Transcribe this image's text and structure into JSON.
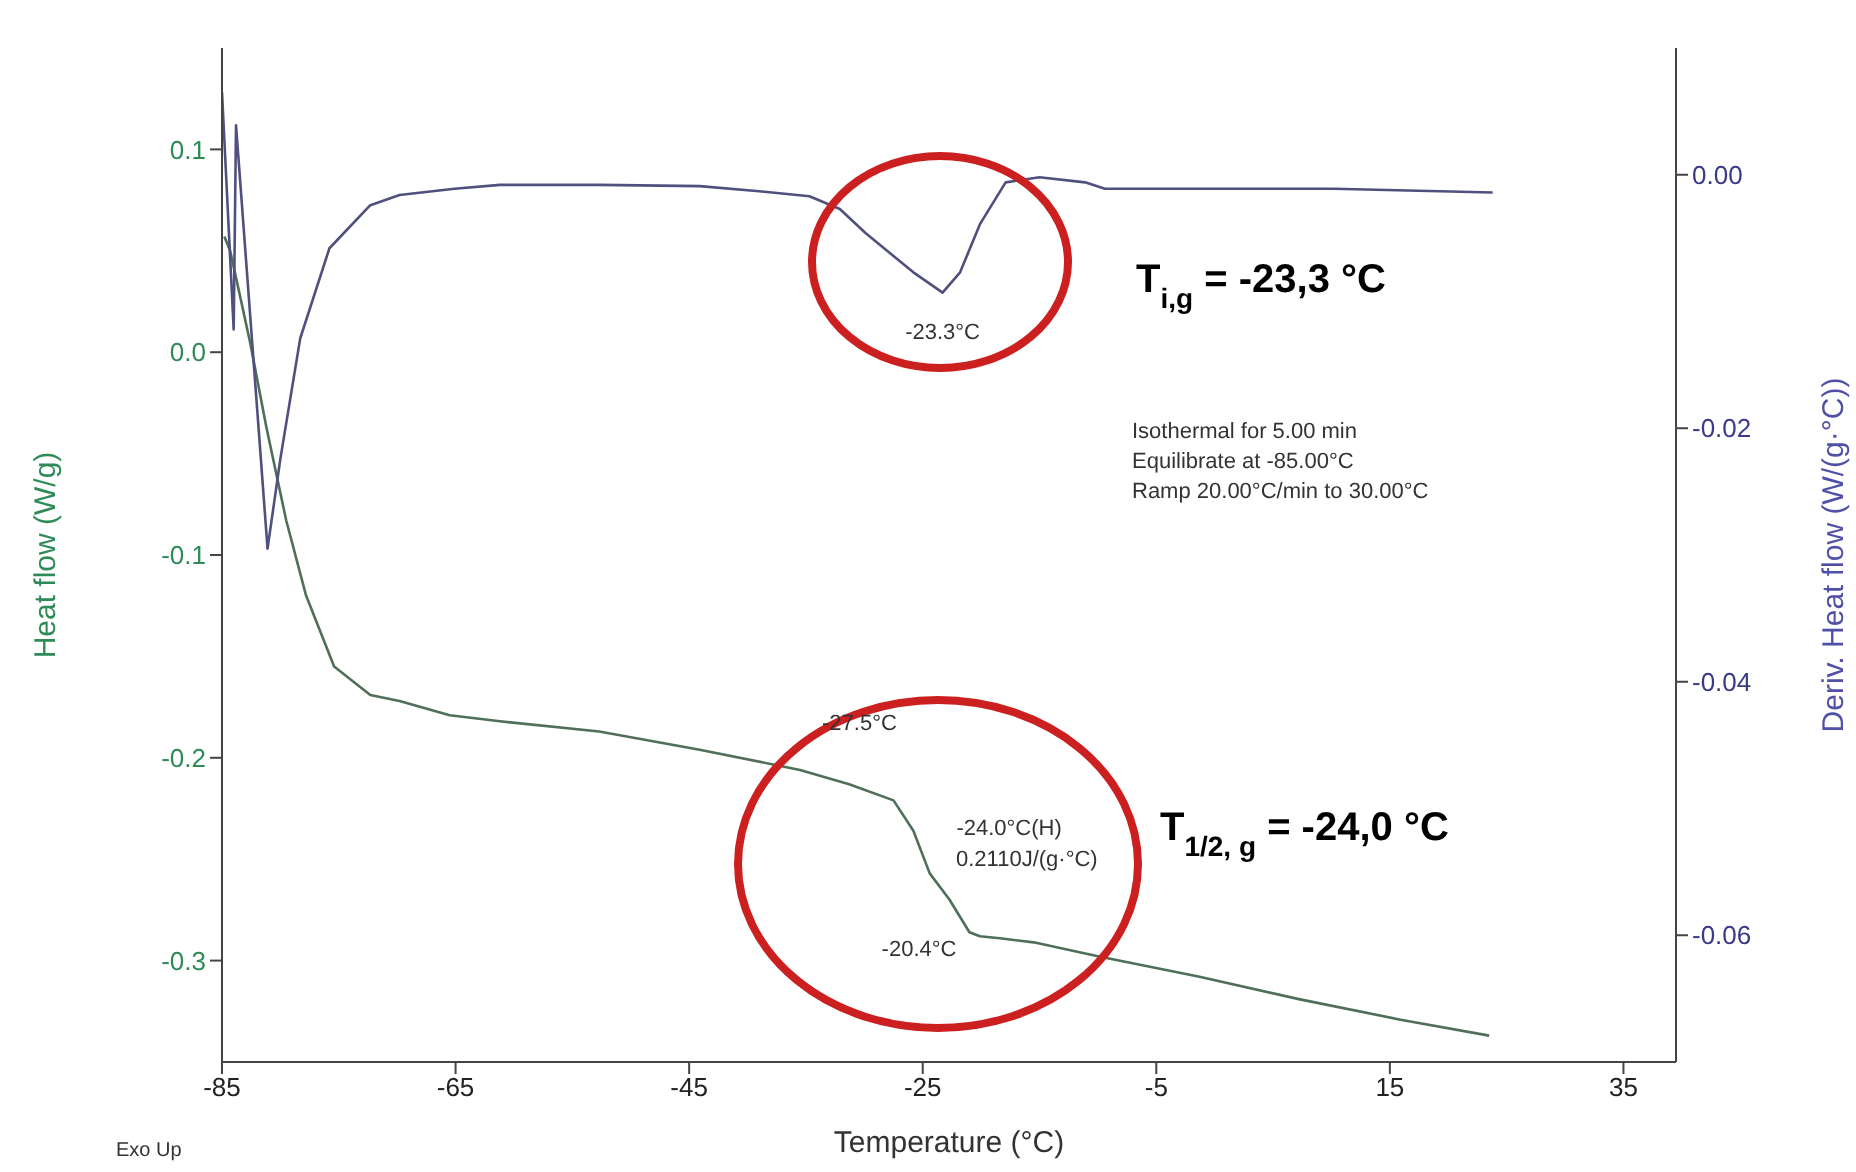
{
  "chart_data": {
    "type": "line",
    "xlabel": "Temperature (°C)",
    "ylabel": "Heat flow (W/g)",
    "y2label": "Deriv. Heat flow (W/(g·°C))",
    "xlim": [
      -85,
      39.5
    ],
    "xticks": [
      -85,
      -65,
      -45,
      -25,
      -5,
      15,
      35
    ],
    "ylim": [
      -0.35,
      0.15
    ],
    "yticks": [
      {
        "value": -0.3,
        "label": "-0.3"
      },
      {
        "value": -0.2,
        "label": "-0.2"
      },
      {
        "value": -0.1,
        "label": "-0.1"
      },
      {
        "value": 0,
        "label": "0.0"
      },
      {
        "value": 0.1,
        "label": "0.1"
      }
    ],
    "y2lim": [
      -0.07,
      0.01
    ],
    "y2ticks": [
      {
        "value": -0.06,
        "label": "-0.06"
      },
      {
        "value": -0.04,
        "label": "-0.04"
      },
      {
        "value": -0.02,
        "label": "-0.02"
      },
      {
        "value": 0,
        "label": "0.00"
      }
    ],
    "grid": false,
    "marker": "none",
    "line_style": "solid",
    "series": [
      {
        "color": "#4f6f58",
        "x": [
          -84.8,
          -84.3,
          -82.6,
          -81.2,
          -79.5,
          -77.8,
          -75.4,
          -72.3,
          -69.8,
          -65.5,
          -61.2,
          -52.7,
          -44.1,
          -35.5,
          -31.3,
          -27.5,
          -25.8,
          -24.4,
          -22.7,
          -21.0,
          -20.1,
          -18.4,
          -15.5,
          -9.9,
          -1.3,
          7.2,
          15.8,
          23.5
        ],
        "values": [
          0.057,
          0.05,
          0.005,
          -0.037,
          -0.083,
          -0.12,
          -0.155,
          -0.169,
          -0.172,
          -0.179,
          -0.182,
          -0.187,
          -0.196,
          -0.206,
          -0.213,
          -0.221,
          -0.236,
          -0.257,
          -0.27,
          -0.286,
          -0.288,
          -0.289,
          -0.291,
          -0.298,
          -0.308,
          -0.319,
          -0.329,
          -0.337
        ]
      },
      {
        "color": "#50507e",
        "axis": "y2",
        "x": [
          -85.0,
          -84.0,
          -83.8,
          -81.1,
          -80.0,
          -78.3,
          -75.8,
          -72.3,
          -69.8,
          -65.1,
          -61.2,
          -52.7,
          -44.1,
          -39.0,
          -34.7,
          -32.1,
          -29.9,
          -25.8,
          -23.3,
          -21.8,
          -20.1,
          -17.9,
          -15.0,
          -11.1,
          -9.4,
          -1.3,
          10.2,
          23.8
        ],
        "values": [
          0.0065,
          -0.0122,
          0.0039,
          -0.0295,
          -0.0224,
          -0.0129,
          -0.0058,
          -0.0024,
          -0.0016,
          -0.0011,
          -0.0008,
          -0.0008,
          -0.0009,
          -0.0013,
          -0.0017,
          -0.0027,
          -0.0046,
          -0.0077,
          -0.0093,
          -0.0077,
          -0.0039,
          -0.0006,
          -0.0002,
          -0.0006,
          -0.0011,
          -0.0011,
          -0.0011,
          -0.0014
        ]
      }
    ],
    "annotations": [
      {
        "text": "-23.3°C",
        "x": -23.3,
        "y": 0.028
      },
      "-27.5°C",
      {
        "text": "-24.0°C(H)",
        "x": -24.0,
        "y": -0.257
      },
      "0.2110J/(g·°C)",
      {
        "text": "-20.4°C",
        "x": -20.4,
        "y": -0.288
      },
      "Isothermal for 5.00 min",
      "Equilibrate at -85.00°C",
      "Ramp 20.00°C/min to 30.00°C",
      "T$_{i,g}$ = -23,3 °C",
      "T$_{1/2, g}$ = -24,0 °C",
      "Exo Up"
    ]
  }
}
